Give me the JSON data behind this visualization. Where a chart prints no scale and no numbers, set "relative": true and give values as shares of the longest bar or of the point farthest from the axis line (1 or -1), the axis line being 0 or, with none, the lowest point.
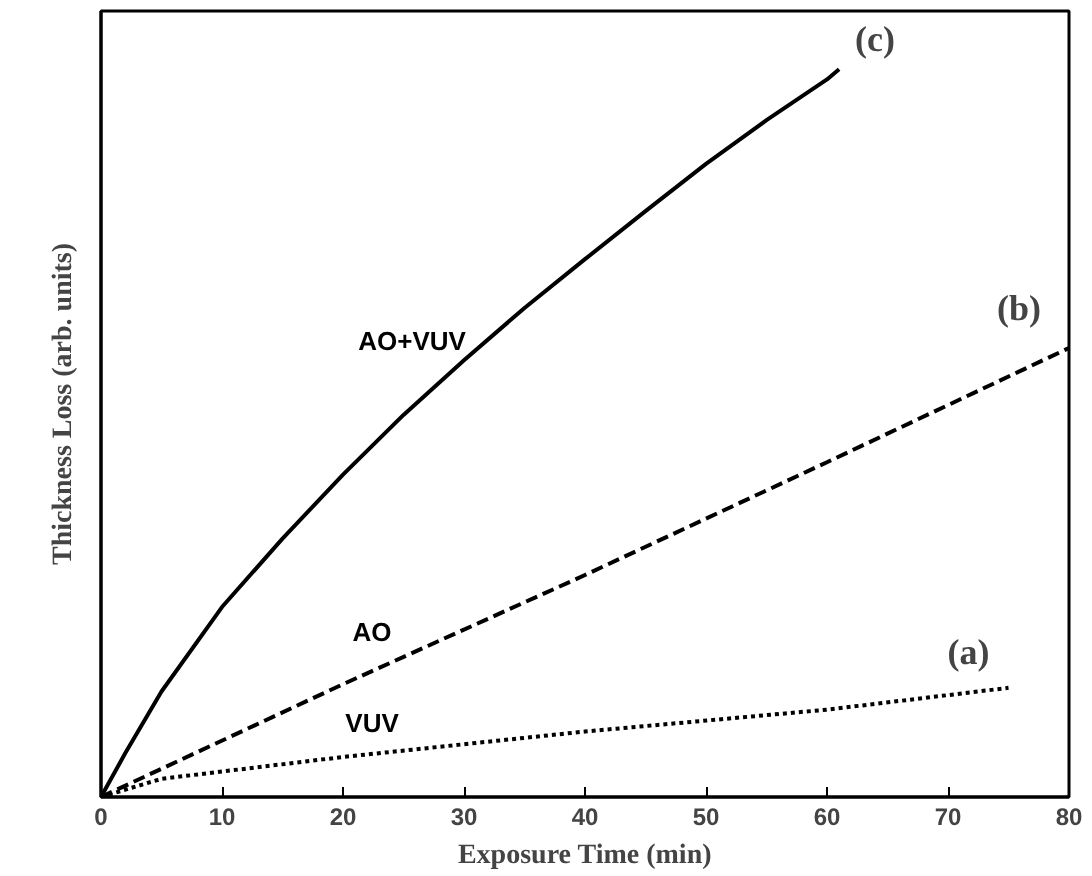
{
  "chart_data": {
    "type": "line",
    "relative": true,
    "xlabel": "Exposure Time (min)",
    "ylabel": "Thickness Loss (arb. units)",
    "xlim": [
      0,
      80
    ],
    "xticks": [
      0,
      10,
      20,
      30,
      40,
      50,
      60,
      70,
      80
    ],
    "tick_labels": "x",
    "legend": false,
    "grid": false,
    "series": [
      {
        "name": "AO+VUV",
        "color": "#000000",
        "line_style": "solid",
        "x": [
          0,
          2,
          5,
          10,
          15,
          20,
          25,
          30,
          35,
          40,
          45,
          50,
          55,
          60,
          61
        ],
        "values": [
          0,
          0.06,
          0.145,
          0.261,
          0.355,
          0.443,
          0.525,
          0.6,
          0.672,
          0.739,
          0.805,
          0.87,
          0.93,
          0.986,
          1
        ]
      },
      {
        "name": "AO",
        "color": "#000000",
        "line_style": "dashed",
        "x": [
          0,
          20,
          40,
          60,
          80
        ],
        "values": [
          0,
          0.155,
          0.305,
          0.46,
          0.617
        ]
      },
      {
        "name": "VUV",
        "color": "#000000",
        "line_style": "dotted",
        "x": [
          0,
          5,
          20,
          40,
          60,
          75
        ],
        "values": [
          0,
          0.025,
          0.055,
          0.09,
          0.12,
          0.15
        ]
      }
    ],
    "annotations": [
      "(c)",
      "(b)",
      "(a)"
    ]
  }
}
